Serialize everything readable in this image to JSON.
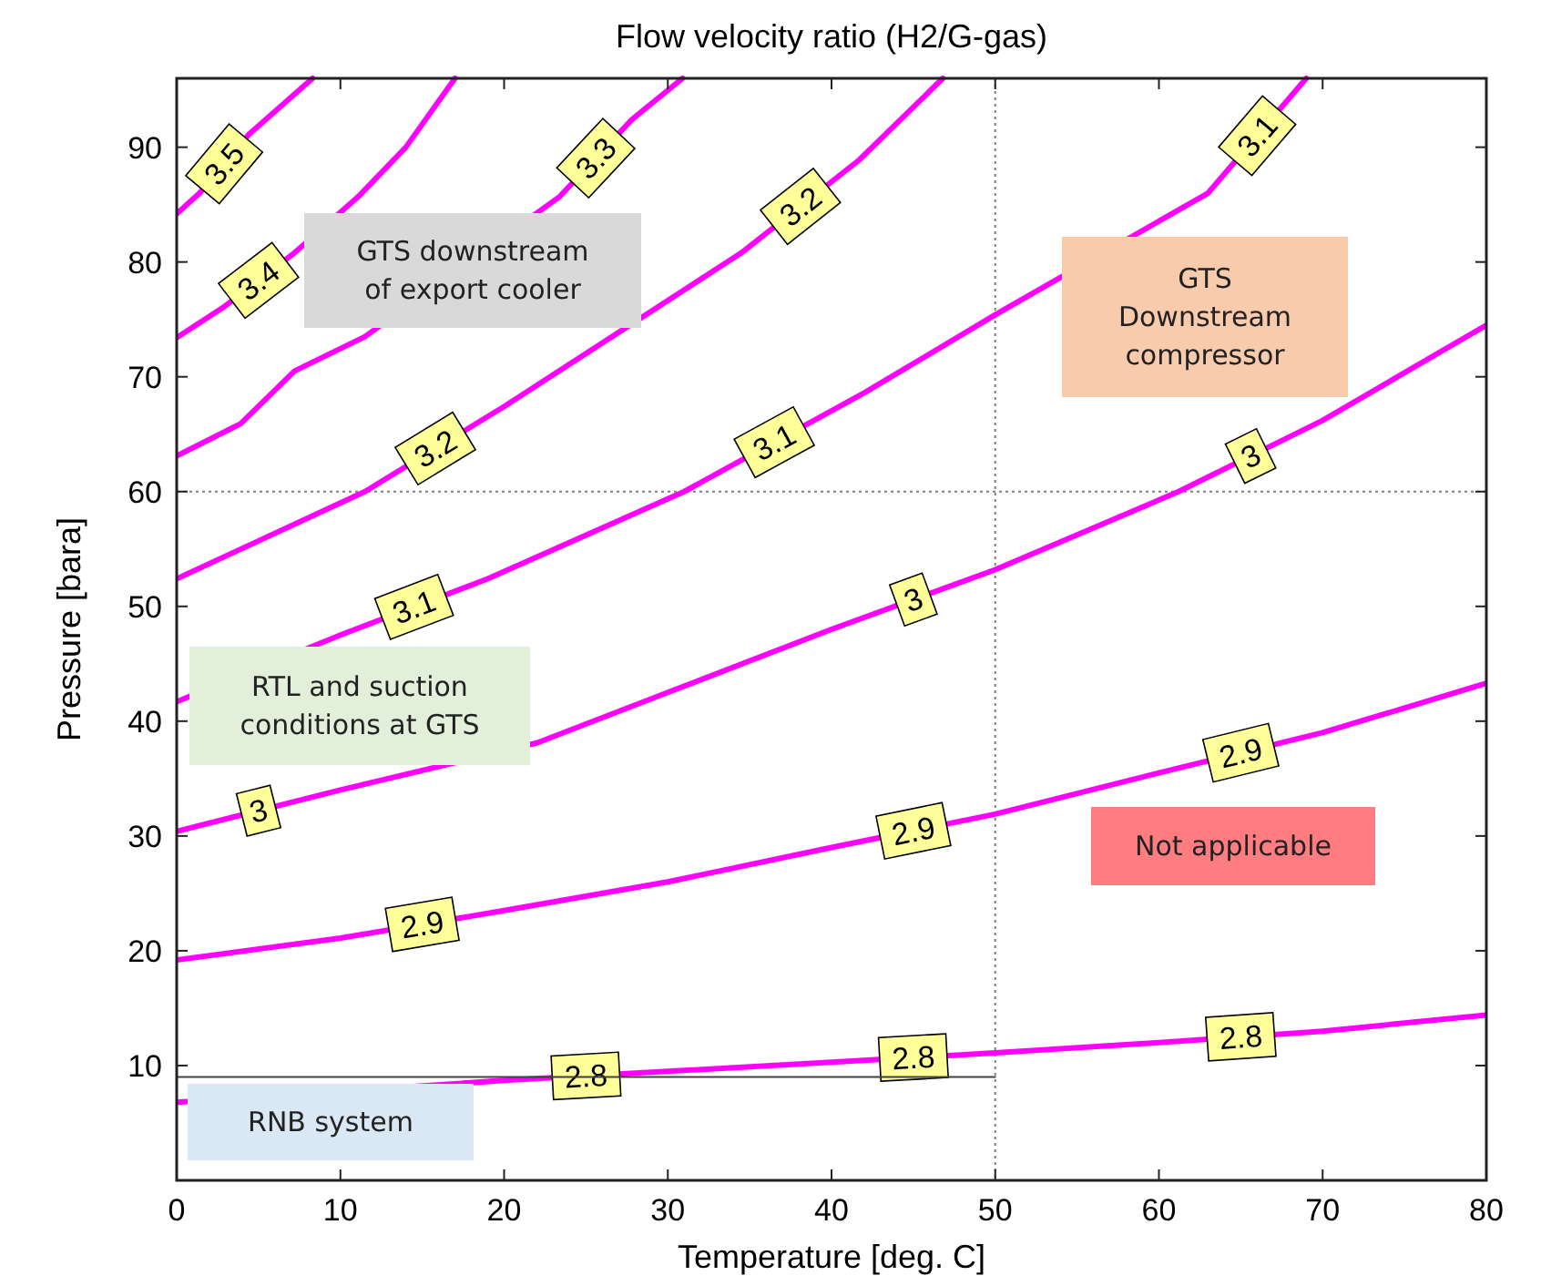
{
  "chart_data": {
    "type": "line",
    "title": "Flow velocity ratio (H2/G-gas)",
    "xlabel": "Temperature [deg. C]",
    "ylabel": "Pressure [bara]",
    "xlim": [
      0,
      80
    ],
    "xticks": [
      0,
      10,
      20,
      30,
      40,
      50,
      60,
      70,
      80
    ],
    "ylim": [
      0,
      96
    ],
    "yticks": [
      10,
      20,
      30,
      40,
      50,
      60,
      70,
      80,
      90
    ],
    "grid": false,
    "marker": "none",
    "line_style": "solid",
    "series": [
      {
        "name": "2.8",
        "color": "#ff00ff",
        "x": [
          0,
          20,
          30,
          40,
          50,
          60,
          70,
          80
        ],
        "values": [
          6.8,
          8.7,
          9.5,
          10.3,
          11.1,
          12,
          13,
          14.4
        ]
      },
      {
        "name": "2.9",
        "color": "#ff00ff",
        "x": [
          0,
          10,
          20,
          30,
          40,
          50,
          60,
          70,
          80
        ],
        "values": [
          19.2,
          21.1,
          23.5,
          26,
          29,
          31.9,
          35.5,
          39,
          43.3
        ]
      },
      {
        "name": "3",
        "color": "#ff00ff",
        "x": [
          0,
          10,
          22,
          30,
          40,
          50,
          61.2,
          70,
          80
        ],
        "values": [
          30.4,
          34,
          38.1,
          42.5,
          48,
          53.2,
          60,
          66.2,
          74.5
        ]
      },
      {
        "name": "3.1",
        "color": "#ff00ff",
        "x": [
          0,
          10,
          19,
          31,
          42,
          50,
          63,
          69
        ],
        "values": [
          41.7,
          47.5,
          52.4,
          60,
          68.6,
          75.4,
          86,
          96
        ]
      },
      {
        "name": "3.2",
        "color": "#ff00ff",
        "x": [
          0,
          11.5,
          20.1,
          34.5,
          41.7,
          46.8
        ],
        "values": [
          52.4,
          60,
          67.5,
          80.8,
          88.9,
          96
        ]
      },
      {
        "name": "3.3",
        "color": "#ff00ff",
        "x": [
          0,
          3.9,
          7.2,
          11.5,
          23.4,
          27.8,
          30.9
        ],
        "values": [
          63.1,
          65.9,
          70.5,
          73.5,
          85.7,
          92.4,
          96
        ]
      },
      {
        "name": "3.4",
        "color": "#ff00ff",
        "x": [
          0,
          2.8,
          7.2,
          11.1,
          14,
          17
        ],
        "values": [
          73.4,
          76,
          80.8,
          85.7,
          90,
          96
        ]
      },
      {
        "name": "3.5",
        "color": "#ff00ff",
        "x": [
          0,
          1.4,
          4.4,
          8.3
        ],
        "values": [
          84.2,
          86,
          91.1,
          96
        ]
      },
      {
        "type": "line",
        "color": "#404040",
        "x": [
          0,
          50
        ],
        "values": [
          9,
          9
        ]
      }
    ],
    "ref_lines": [
      {
        "axis": "x",
        "value": 50,
        "color": "#808080",
        "line_style": "dotted"
      },
      {
        "axis": "y",
        "value": 60,
        "color": "#808080",
        "line_style": "dotted"
      }
    ],
    "annotations": [
      "GTS downstream\nof export cooler",
      "GTS\nDownstream\ncompressor",
      "RTL and suction\nconditions at GTS",
      "Not applicable",
      "RNB system"
    ]
  }
}
